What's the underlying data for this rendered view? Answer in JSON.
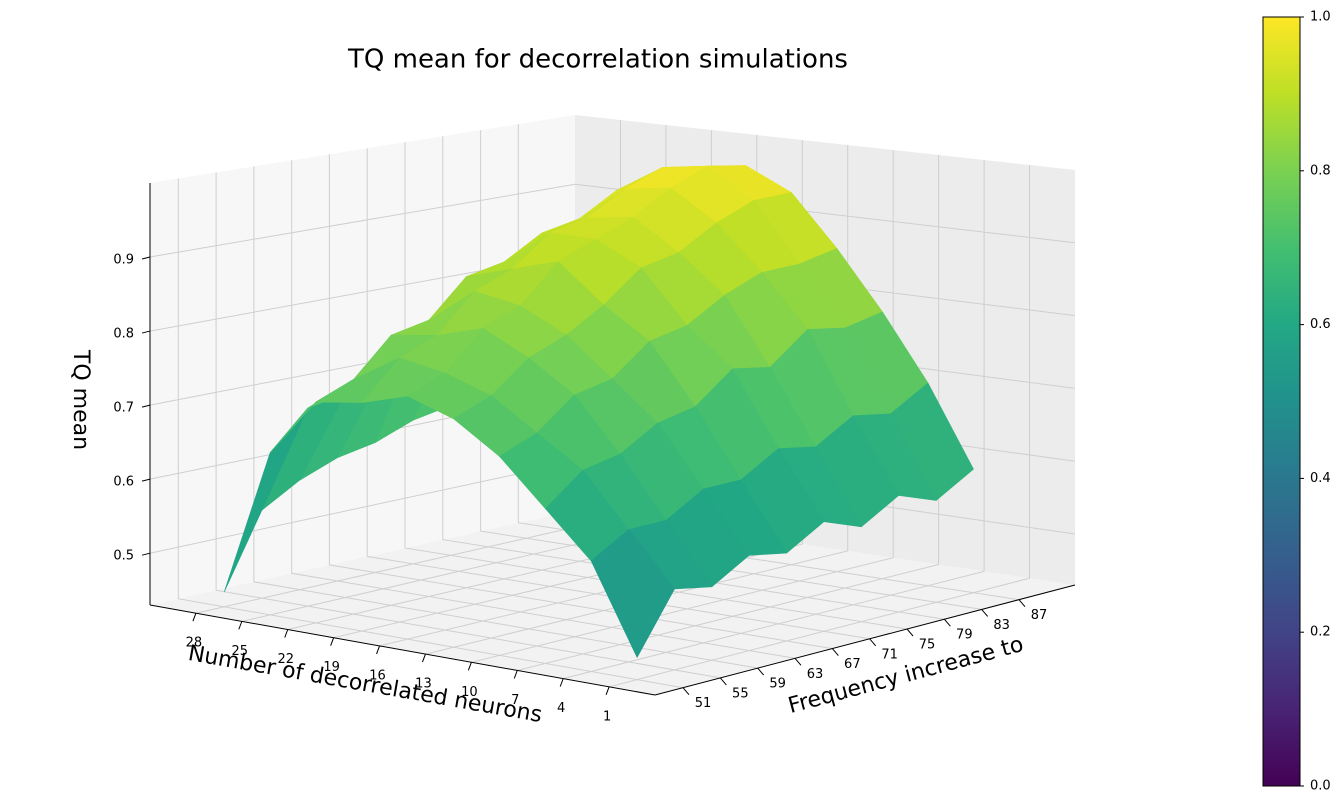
{
  "chart_data": {
    "type": "surface",
    "title": "TQ mean for decorrelation simulations",
    "xlabel": "Number of decorrelated neurons",
    "ylabel": "Frequency increase to",
    "zlabel": "TQ mean",
    "x": [
      1,
      4,
      7,
      10,
      13,
      16,
      19,
      22,
      25,
      28
    ],
    "y": [
      51,
      55,
      59,
      63,
      67,
      71,
      75,
      79,
      83,
      87
    ],
    "z": [
      [
        0.46,
        0.54,
        0.53,
        0.56,
        0.55,
        0.58,
        0.56,
        0.59,
        0.57,
        0.6
      ],
      [
        0.58,
        0.61,
        0.61,
        0.64,
        0.64,
        0.67,
        0.66,
        0.69,
        0.68,
        0.71
      ],
      [
        0.64,
        0.68,
        0.69,
        0.72,
        0.73,
        0.77,
        0.76,
        0.8,
        0.79,
        0.8
      ],
      [
        0.7,
        0.72,
        0.76,
        0.77,
        0.81,
        0.82,
        0.85,
        0.87,
        0.87,
        0.88
      ],
      [
        0.74,
        0.76,
        0.8,
        0.82,
        0.85,
        0.89,
        0.9,
        0.93,
        0.95,
        0.95
      ],
      [
        0.76,
        0.78,
        0.83,
        0.85,
        0.9,
        0.92,
        0.94,
        0.97,
        0.99,
        0.98
      ],
      [
        0.74,
        0.79,
        0.81,
        0.86,
        0.88,
        0.92,
        0.93,
        0.96,
        0.98,
        0.97
      ],
      [
        0.73,
        0.75,
        0.8,
        0.81,
        0.86,
        0.87,
        0.9,
        0.91,
        0.94,
        0.93
      ],
      [
        0.65,
        0.7,
        0.71,
        0.73,
        0.77,
        0.78,
        0.79,
        0.82,
        0.82,
        0.83
      ],
      [
        0.45,
        0.55,
        0.58,
        0.6,
        0.61,
        0.63,
        0.64,
        0.66,
        0.68,
        0.7
      ]
    ],
    "xlim": [
      -2,
      31
    ],
    "xticks": [
      1,
      4,
      7,
      10,
      13,
      16,
      19,
      22,
      25,
      28
    ],
    "ylim": [
      48,
      93
    ],
    "yticks": [
      51,
      55,
      59,
      63,
      67,
      71,
      75,
      79,
      83,
      87
    ],
    "zlim": [
      0.43,
      1.0
    ],
    "zticks": [
      0.5,
      0.6,
      0.7,
      0.8,
      0.9
    ],
    "grid": true,
    "colormap": "viridis",
    "colorbar": {
      "lim": [
        0,
        1
      ],
      "ticks": [
        {
          "value": 0,
          "label": "0.0"
        },
        0.2,
        0.4,
        0.6,
        0.8,
        {
          "value": 1,
          "label": "1.0"
        }
      ]
    }
  }
}
